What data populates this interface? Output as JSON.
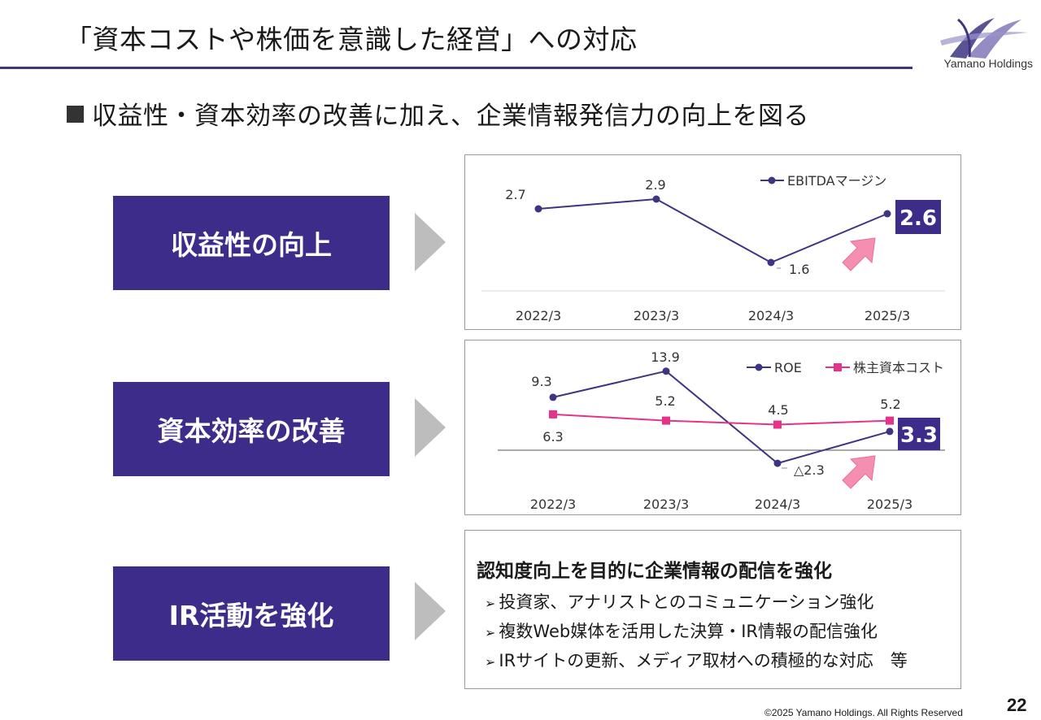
{
  "header": {
    "title": "「資本コストや株価を意識した経営」への対応",
    "logo_text": "Yamano Holdings",
    "brand_color": "#3d2c89"
  },
  "subtitle": "収益性・資本効率の改善に加え、企業情報発信力の向上を図る",
  "sections": [
    {
      "label": "収益性の向上"
    },
    {
      "label": "資本効率の改善"
    },
    {
      "label": "IR活動を強化"
    }
  ],
  "chart_data": [
    {
      "type": "line",
      "categories": [
        "2022/3",
        "2023/3",
        "2024/3",
        "2025/3"
      ],
      "series": [
        {
          "name": "EBITDAマージン",
          "values": [
            2.7,
            2.9,
            1.6,
            2.6
          ],
          "color": "#3d3580",
          "labels": [
            "2.7",
            "2.9",
            "1.6",
            "2.6"
          ]
        }
      ],
      "highlight": "2.6",
      "legend": "top-right",
      "grid": false
    },
    {
      "type": "line",
      "categories": [
        "2022/3",
        "2023/3",
        "2024/3",
        "2025/3"
      ],
      "series": [
        {
          "name": "ROE",
          "values": [
            9.3,
            13.9,
            -2.3,
            3.3
          ],
          "color": "#3d3580",
          "labels": [
            "9.3",
            "13.9",
            "△2.3",
            "3.3"
          ]
        },
        {
          "name": "株主資本コスト",
          "values": [
            6.3,
            5.2,
            4.5,
            5.2
          ],
          "color": "#e6338a",
          "labels": [
            "6.3",
            "5.2",
            "4.5",
            "5.2"
          ]
        }
      ],
      "highlight": "3.3",
      "legend": "top-right",
      "grid": false
    }
  ],
  "ir": {
    "heading": "認知度向上を目的に企業情報の配信を強化",
    "bullet": "➢",
    "items": [
      "投資家、アナリストとのコミュニケーション強化",
      "複数Web媒体を活用した決算・IR情報の配信強化",
      "IRサイトの更新、メディア取材への積極的な対応　等"
    ]
  },
  "footer": {
    "copyright": "©2025 Yamano Holdings. All Rights Reserved",
    "page": "22"
  }
}
